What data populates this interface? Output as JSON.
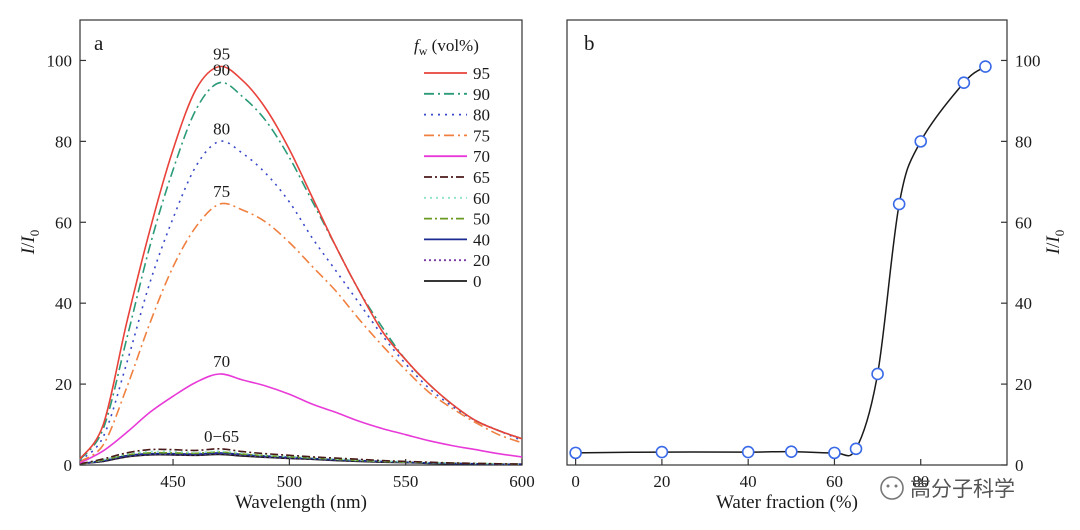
{
  "chart_data": [
    {
      "panel": "a",
      "type": "line",
      "xlabel": "Wavelength (nm)",
      "ylabel_main": "I",
      "ylabel_slash": "/",
      "ylabel_i": "I",
      "ylabel_sub": "0",
      "xlim": [
        410,
        600
      ],
      "ylim": [
        0,
        110
      ],
      "xticks": [
        450,
        500,
        550,
        600
      ],
      "yticks": [
        0,
        20,
        40,
        60,
        80,
        100
      ],
      "legend_title_f": "f",
      "legend_title_sub": "w",
      "legend_title_rest": " (vol%)",
      "legend_position": "top-right",
      "x": [
        410,
        420,
        430,
        440,
        450,
        460,
        470,
        480,
        490,
        500,
        510,
        520,
        530,
        540,
        550,
        560,
        570,
        580,
        590,
        600
      ],
      "series": [
        {
          "name": "95",
          "color": "#e8423a",
          "dash": "",
          "values": [
            1.5,
            10,
            35,
            58,
            78,
            93,
            98.5,
            95,
            88,
            78,
            66,
            54,
            43,
            33,
            26,
            20,
            15,
            11,
            8.5,
            6.5
          ]
        },
        {
          "name": "90",
          "color": "#2a9a78",
          "dash": "10,4,2,4",
          "values": [
            1.3,
            9,
            31,
            54,
            73,
            88,
            94.5,
            91,
            85,
            76,
            65,
            54,
            43,
            34,
            26,
            20,
            15,
            11,
            8.5,
            6.5
          ]
        },
        {
          "name": "80",
          "color": "#3848c8",
          "dash": "2,5",
          "values": [
            1.1,
            7,
            25,
            45,
            61,
            74,
            80,
            77,
            72,
            65,
            56,
            48,
            40,
            32,
            25,
            19,
            14.5,
            11,
            8.5,
            6
          ]
        },
        {
          "name": "75",
          "color": "#f08040",
          "dash": "10,4,2,4",
          "values": [
            0.9,
            5,
            19,
            35,
            49,
            59,
            64.5,
            63,
            60,
            55,
            49,
            43,
            36,
            29.5,
            23.5,
            18,
            14,
            10.5,
            7.5,
            5.5
          ]
        },
        {
          "name": "70",
          "color": "#e83ad8",
          "dash": "",
          "values": [
            0.5,
            3.5,
            8,
            13,
            17,
            20.5,
            22.5,
            21,
            19.5,
            17.5,
            15,
            13,
            10.8,
            9,
            7.5,
            6,
            4.8,
            3.8,
            2.8,
            2
          ]
        },
        {
          "name": "65",
          "color": "#4a1a1a",
          "dash": "8,3,2,3",
          "values": [
            0.3,
            1.5,
            3,
            3.8,
            3.8,
            3.6,
            4,
            3.3,
            2.8,
            2.4,
            2,
            1.7,
            1.4,
            1.1,
            0.9,
            0.7,
            0.5,
            0.4,
            0.3,
            0.2
          ]
        },
        {
          "name": "60",
          "color": "#8ee0c8",
          "dash": "2,4",
          "values": [
            0.3,
            1.3,
            2.7,
            3.3,
            3.3,
            3.1,
            3.4,
            2.9,
            2.4,
            2.1,
            1.8,
            1.5,
            1.2,
            1,
            0.8,
            0.6,
            0.5,
            0.4,
            0.3,
            0.2
          ]
        },
        {
          "name": "50",
          "color": "#6a9a20",
          "dash": "8,3,2,3",
          "values": [
            0.3,
            1.2,
            2.5,
            3,
            3,
            2.9,
            3.2,
            2.7,
            2.3,
            2,
            1.7,
            1.4,
            1.1,
            0.9,
            0.7,
            0.6,
            0.5,
            0.4,
            0.3,
            0.2
          ]
        },
        {
          "name": "40",
          "color": "#1a2a90",
          "dash": "",
          "values": [
            0.3,
            1.1,
            2.3,
            2.8,
            2.8,
            2.7,
            3,
            2.6,
            2.2,
            1.9,
            1.6,
            1.3,
            1.1,
            0.9,
            0.7,
            0.5,
            0.4,
            0.3,
            0.2,
            0.2
          ]
        },
        {
          "name": "20",
          "color": "#7a3aa8",
          "dash": "2,3",
          "values": [
            0.3,
            1,
            2.1,
            2.6,
            2.6,
            2.5,
            2.8,
            2.4,
            2,
            1.7,
            1.5,
            1.2,
            1,
            0.8,
            0.6,
            0.5,
            0.4,
            0.3,
            0.2,
            0.2
          ]
        },
        {
          "name": "0",
          "color": "#1a1a1a",
          "dash": "",
          "values": [
            0.3,
            0.9,
            2,
            2.5,
            2.5,
            2.4,
            2.6,
            2.2,
            1.9,
            1.6,
            1.4,
            1.1,
            0.9,
            0.7,
            0.6,
            0.4,
            0.3,
            0.2,
            0.2,
            0.1
          ]
        }
      ],
      "annotations": [
        {
          "text": "95",
          "x": 470,
          "y": 98.5
        },
        {
          "text": "90",
          "x": 470,
          "y": 94.5
        },
        {
          "text": "80",
          "x": 470,
          "y": 80
        },
        {
          "text": "75",
          "x": 470,
          "y": 64.5
        },
        {
          "text": "70",
          "x": 470,
          "y": 22.5
        },
        {
          "text": "0−65",
          "x": 470,
          "y": 4
        }
      ]
    },
    {
      "panel": "b",
      "type": "scatter",
      "xlabel": "Water fraction (%)",
      "ylabel_main": "I",
      "ylabel_slash": "/",
      "ylabel_i": "I",
      "ylabel_sub": "0",
      "xlim": [
        -2,
        100
      ],
      "ylim": [
        0,
        110
      ],
      "xticks": [
        0,
        20,
        40,
        60,
        80
      ],
      "yticks": [
        0,
        20,
        40,
        60,
        80,
        100
      ],
      "marker_color": "#3a6ae8",
      "x": [
        0,
        20,
        40,
        50,
        60,
        65,
        70,
        75,
        80,
        90,
        95
      ],
      "y": [
        3,
        3.2,
        3.2,
        3.3,
        3,
        4,
        22.5,
        64.5,
        80,
        94.5,
        98.5
      ]
    }
  ],
  "watermark": "高分子科学"
}
